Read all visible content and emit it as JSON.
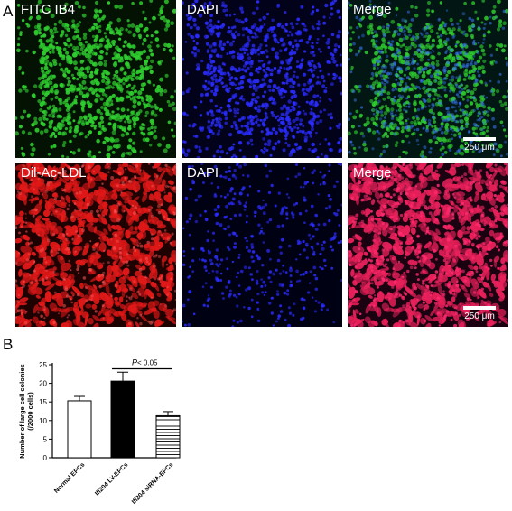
{
  "figure": {
    "panel_a_letter": "A",
    "panel_b_letter": "B",
    "panels": [
      {
        "label": "FITC IB4",
        "stain": "green",
        "scalebar": ""
      },
      {
        "label": "DAPI",
        "stain": "blue",
        "scalebar": ""
      },
      {
        "label": "Merge",
        "stain": "green-blue",
        "scalebar": "250 μm"
      },
      {
        "label": "Dil-Ac-LDL",
        "stain": "red",
        "scalebar": ""
      },
      {
        "label": "DAPI",
        "stain": "blue-sparse",
        "scalebar": ""
      },
      {
        "label": "Merge",
        "stain": "red-blue",
        "scalebar": "250 μm"
      }
    ],
    "colors": {
      "green": "#2ecc2e",
      "blue": "#2a2cff",
      "red": "#e01818",
      "merge_green": "#3fd0a0",
      "merge_red": "#ff2a70"
    }
  },
  "chart_data": {
    "type": "bar",
    "ylabel_line1": "Number of large cell colonies",
    "ylabel_line2": "(/2000 cells)",
    "ylim": [
      0,
      25
    ],
    "yticks": [
      "0",
      "5",
      "10",
      "15",
      "20",
      "25"
    ],
    "categories": [
      "Normal EPCs",
      "Ifi204 LV-EPCs",
      "Ifi204 siRNA-EPCs"
    ],
    "values": [
      15.3,
      20.6,
      11.3
    ],
    "errors": [
      1.2,
      2.4,
      1.1
    ],
    "fills": [
      "white",
      "black",
      "hatched"
    ],
    "annotation_p": "P",
    "annotation_rest": "< 0.05"
  }
}
